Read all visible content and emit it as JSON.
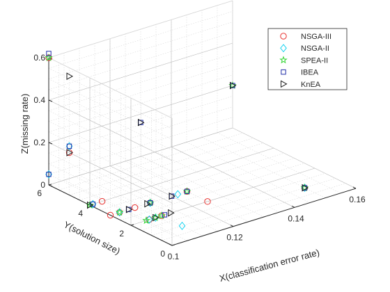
{
  "chart_data": {
    "type": "scatter3d",
    "xlabel": "X(classification error rate)",
    "ylabel": "Y(solution size)",
    "zlabel": "Z(missing rate)",
    "xlim": [
      0.1,
      0.16
    ],
    "ylim": [
      0,
      6
    ],
    "zlim": [
      0,
      0.6
    ],
    "xticks": [
      "0.1",
      "0.12",
      "0.14",
      "0.16"
    ],
    "yticks": [
      "0",
      "2",
      "4",
      "6"
    ],
    "zticks": [
      "0",
      "0.2",
      "0.4",
      "0.6"
    ],
    "grid": true,
    "legend_position": "top-right",
    "series": [
      {
        "name": "NSGA-III",
        "marker": "circle",
        "color": "#e8302e",
        "points": [
          {
            "x": 0.1,
            "y": 6,
            "z": 0.6
          },
          {
            "x": 0.1,
            "y": 5,
            "z": 0.2
          },
          {
            "x": 0.1,
            "y": 3,
            "z": 0
          },
          {
            "x": 0.103,
            "y": 3,
            "z": 0
          },
          {
            "x": 0.104,
            "y": 4,
            "z": 0
          },
          {
            "x": 0.106,
            "y": 2,
            "z": 0
          },
          {
            "x": 0.11,
            "y": 2,
            "z": 0
          },
          {
            "x": 0.108,
            "y": 3,
            "z": 0
          },
          {
            "x": 0.113,
            "y": 3,
            "z": 0
          },
          {
            "x": 0.125,
            "y": 2,
            "z": 0
          },
          {
            "x": 0.125,
            "y": 3,
            "z": 0
          },
          {
            "x": 0.15,
            "y": 1,
            "z": 0
          }
        ]
      },
      {
        "name": "NSGA-II",
        "marker": "diamond",
        "color": "#19d3f0",
        "points": [
          {
            "x": 0.1,
            "y": 5,
            "z": 0.23
          },
          {
            "x": 0.1,
            "y": 6,
            "z": 0.05
          },
          {
            "x": 0.101,
            "y": 4,
            "z": 0
          },
          {
            "x": 0.103,
            "y": 3,
            "z": 0
          },
          {
            "x": 0.106,
            "y": 2,
            "z": 0
          },
          {
            "x": 0.108,
            "y": 2,
            "z": 0
          },
          {
            "x": 0.11,
            "y": 1,
            "z": 0
          },
          {
            "x": 0.113,
            "y": 3,
            "z": 0
          },
          {
            "x": 0.122,
            "y": 3,
            "z": 0
          },
          {
            "x": 0.15,
            "y": 1,
            "z": 0
          }
        ]
      },
      {
        "name": "SPEA-II",
        "marker": "star",
        "color": "#2fd42f",
        "points": [
          {
            "x": 0.1,
            "y": 6,
            "z": 0.6
          },
          {
            "x": 0.1,
            "y": 4,
            "z": 0
          },
          {
            "x": 0.103,
            "y": 3,
            "z": 0
          },
          {
            "x": 0.105,
            "y": 2,
            "z": 0
          },
          {
            "x": 0.108,
            "y": 2,
            "z": 0
          },
          {
            "x": 0.11,
            "y": 2,
            "z": 0
          },
          {
            "x": 0.113,
            "y": 3,
            "z": 0
          },
          {
            "x": 0.125,
            "y": 3,
            "z": 0
          },
          {
            "x": 0.15,
            "y": 1,
            "z": 0
          },
          {
            "x": 0.16,
            "y": 6,
            "z": 0.2
          }
        ]
      },
      {
        "name": "IBEA",
        "marker": "square",
        "color": "#1f2ea8",
        "points": [
          {
            "x": 0.1,
            "y": 6,
            "z": 0.62
          },
          {
            "x": 0.1,
            "y": 5,
            "z": 0.23
          },
          {
            "x": 0.1,
            "y": 6,
            "z": 0.05
          },
          {
            "x": 0.101,
            "y": 4,
            "z": 0
          },
          {
            "x": 0.106,
            "y": 3,
            "z": 0
          },
          {
            "x": 0.111,
            "y": 2,
            "z": 0
          },
          {
            "x": 0.113,
            "y": 3,
            "z": 0
          },
          {
            "x": 0.12,
            "y": 3,
            "z": 0
          },
          {
            "x": 0.125,
            "y": 3,
            "z": 0
          },
          {
            "x": 0.13,
            "y": 6,
            "z": 0.16
          },
          {
            "x": 0.15,
            "y": 1,
            "z": 0
          },
          {
            "x": 0.16,
            "y": 6,
            "z": 0.2
          }
        ]
      },
      {
        "name": "KnEA",
        "marker": "triangle-right",
        "color": "#1a1a1a",
        "points": [
          {
            "x": 0.1,
            "y": 5,
            "z": 0.56
          },
          {
            "x": 0.1,
            "y": 5,
            "z": 0.2
          },
          {
            "x": 0.1,
            "y": 4,
            "z": 0
          },
          {
            "x": 0.106,
            "y": 3,
            "z": 0
          },
          {
            "x": 0.108,
            "y": 2,
            "z": 0
          },
          {
            "x": 0.112,
            "y": 3,
            "z": 0
          },
          {
            "x": 0.113,
            "y": 2,
            "z": 0
          },
          {
            "x": 0.12,
            "y": 3,
            "z": 0
          },
          {
            "x": 0.13,
            "y": 6,
            "z": 0.16
          },
          {
            "x": 0.15,
            "y": 1,
            "z": 0
          },
          {
            "x": 0.16,
            "y": 6,
            "z": 0.2
          }
        ]
      }
    ]
  }
}
